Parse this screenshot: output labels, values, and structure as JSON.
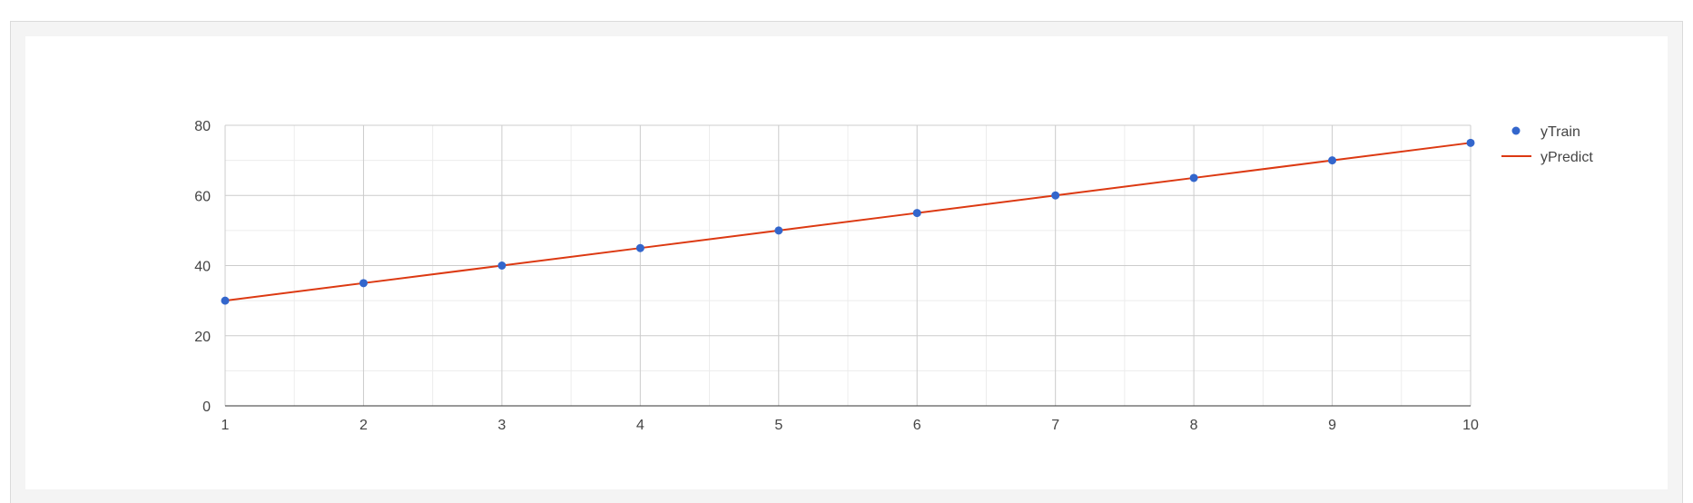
{
  "chart_data": {
    "type": "line",
    "x": [
      1,
      2,
      3,
      4,
      5,
      6,
      7,
      8,
      9,
      10
    ],
    "series": [
      {
        "name": "yTrain",
        "kind": "scatter",
        "values": [
          30,
          35,
          40,
          45,
          50,
          55,
          60,
          65,
          70,
          75
        ],
        "color": "#3366cc"
      },
      {
        "name": "yPredict",
        "kind": "line",
        "values": [
          30,
          35,
          40,
          45,
          50,
          55,
          60,
          65,
          70,
          75
        ],
        "color": "#dc3912"
      }
    ],
    "xlim": [
      1,
      10
    ],
    "ylim": [
      0,
      80
    ],
    "x_ticks": [
      1,
      2,
      3,
      4,
      5,
      6,
      7,
      8,
      9,
      10
    ],
    "y_ticks": [
      0,
      20,
      40,
      60,
      80
    ],
    "title": "",
    "xlabel": "",
    "ylabel": "",
    "grid": true,
    "legend_position": "right"
  }
}
